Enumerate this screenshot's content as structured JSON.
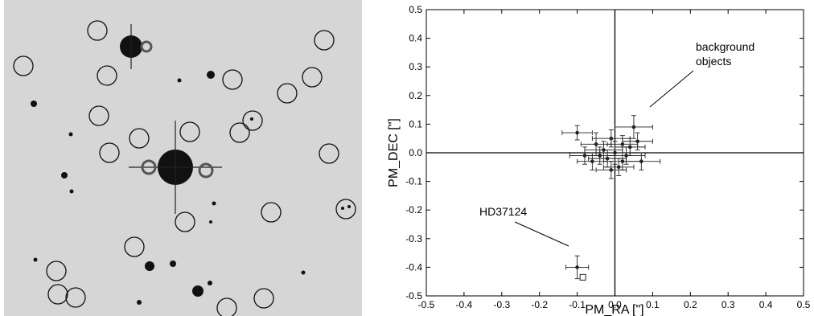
{
  "chart_data": {
    "type": "scatter",
    "xlabel": "PM_RA [\"]",
    "ylabel": "PM_DEC [\"]",
    "annotations": [
      "background",
      "objects",
      "HD37124"
    ],
    "xlim": [
      -0.5,
      0.5
    ],
    "ylim": [
      -0.5,
      0.5
    ],
    "xticks": [
      -0.5,
      -0.4,
      -0.3,
      -0.2,
      -0.1,
      {
        "value": 0,
        "label": "0.0"
      },
      0.1,
      0.2,
      0.3,
      0.4,
      0.5
    ],
    "yticks": [
      -0.5,
      -0.4,
      -0.3,
      -0.2,
      -0.1,
      {
        "value": 0,
        "label": "0.0"
      },
      0.1,
      0.2,
      0.3,
      0.4,
      0.5
    ],
    "color": "#222222",
    "points": {
      "x": [
        -0.1,
        0.05,
        0.07,
        -0.05,
        -0.04,
        0.02,
        -0.02,
        0.0,
        0.03,
        -0.06,
        0.01,
        -0.01,
        0.04,
        -0.03,
        0.06,
        -0.08,
        0.02,
        -0.01,
        -0.1
      ],
      "y": [
        0.07,
        0.09,
        -0.03,
        0.03,
        -0.01,
        0.03,
        -0.02,
        0.0,
        -0.01,
        -0.03,
        -0.05,
        0.05,
        0.02,
        0.01,
        0.04,
        -0.01,
        -0.03,
        -0.06,
        -0.4
      ],
      "xerr": [
        0.04,
        0.05,
        0.05,
        0.04,
        0.04,
        0.04,
        0.05,
        0.04,
        0.05,
        0.04,
        0.04,
        0.05,
        0.04,
        0.05,
        0.04,
        0.04,
        0.05,
        0.04,
        0.03
      ],
      "yerr": [
        0.025,
        0.04,
        0.03,
        0.04,
        0.03,
        0.03,
        0.03,
        0.04,
        0.03,
        0.03,
        0.03,
        0.03,
        0.03,
        0.03,
        0.03,
        0.03,
        0.03,
        0.03,
        0.04
      ]
    },
    "reference": {
      "x": [
        -0.085
      ],
      "y": [
        -0.435
      ]
    }
  }
}
